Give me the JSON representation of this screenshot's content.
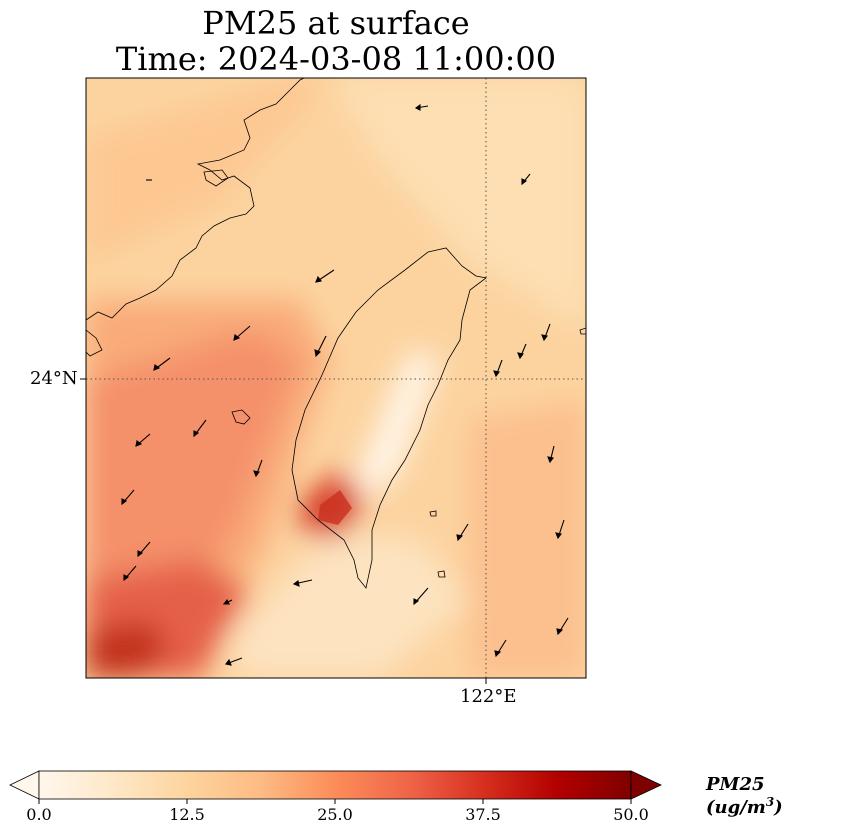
{
  "figure": {
    "title_line1": "PM25 at surface",
    "title_line2": "Time: 2024-03-08 11:00:00"
  },
  "map": {
    "lat_tick_label": "24°N",
    "lon_tick_label": "122°E",
    "gridline_style": "dotted",
    "coastline_color": "#000000",
    "wind_arrow_color": "#000000"
  },
  "colorbar": {
    "label_prefix": "PM25 (ug/m",
    "label_exponent": "3",
    "label_suffix": ")",
    "tick_labels": [
      "0.0",
      "12.5",
      "25.0",
      "37.5",
      "50.0"
    ],
    "min": 0,
    "max": 50,
    "extend": "both",
    "colormap": "OrRd",
    "colors": [
      "#fff7ec",
      "#fee8c8",
      "#fdd49e",
      "#fdbb84",
      "#fc8d59",
      "#ef6548",
      "#d7301f",
      "#b30000",
      "#7f0000"
    ]
  }
}
